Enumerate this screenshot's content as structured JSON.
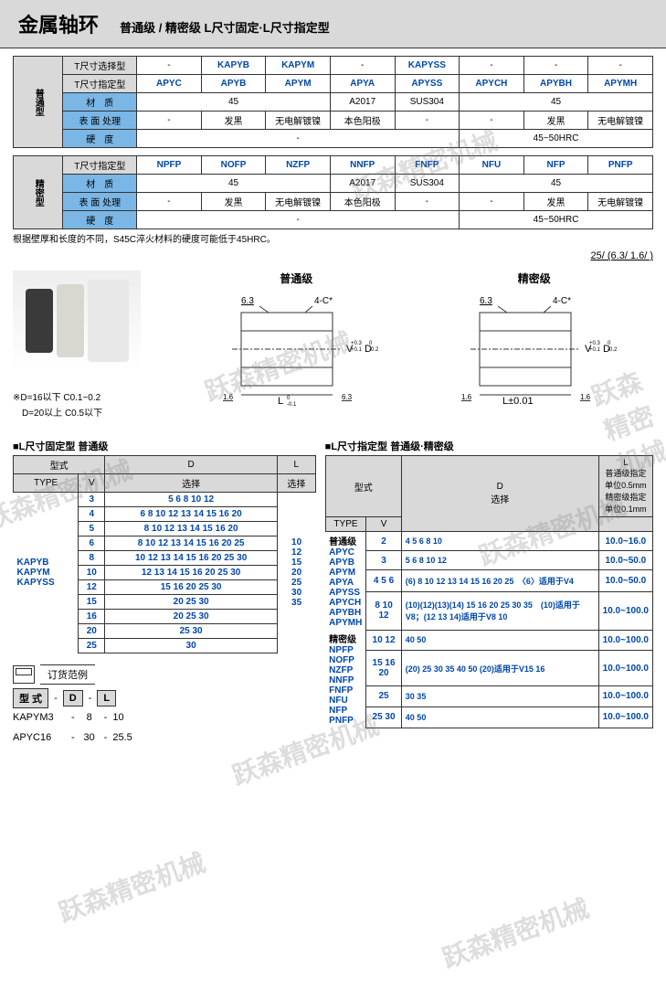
{
  "header": {
    "title": "金属轴环",
    "subtitle": "普通级 / 精密级 L尺寸固定·L尺寸指定型"
  },
  "watermark_text": "跃森精密机械",
  "table1": {
    "side_label": "普通型",
    "rows": [
      {
        "label": "T尺寸选择型",
        "cells": [
          "-",
          "KAPYB",
          "KAPYM",
          "-",
          "KAPYSS",
          "-",
          "-",
          "-"
        ],
        "hdr": true,
        "blue": [
          false,
          true,
          true,
          false,
          true,
          false,
          false,
          false
        ]
      },
      {
        "label": "T尺寸指定型",
        "cells": [
          "APYC",
          "APYB",
          "APYM",
          "APYA",
          "APYSS",
          "APYCH",
          "APYBH",
          "APYMH"
        ],
        "hdr": true,
        "blue": [
          true,
          true,
          true,
          true,
          true,
          true,
          true,
          true
        ]
      },
      {
        "label": "材　质",
        "cells": [
          "45",
          "A2017",
          "SUS304",
          "45"
        ],
        "spans": [
          3,
          1,
          1,
          3
        ],
        "hdr_label": true
      },
      {
        "label": "表 面 处理",
        "cells": [
          "-",
          "发黑",
          "无电解镀镍",
          "本色阳极",
          "-",
          "-",
          "发黑",
          "无电解镀镍"
        ],
        "hdr_label": true
      },
      {
        "label": "硬　度",
        "cells": [
          "-",
          "45~50HRC"
        ],
        "spans": [
          5,
          3
        ],
        "hdr_label": true
      }
    ]
  },
  "table2": {
    "side_label": "精密型",
    "rows": [
      {
        "label": "T尺寸指定型",
        "cells": [
          "NPFP",
          "NOFP",
          "NZFP",
          "NNFP",
          "FNFP",
          "NFU",
          "NFP",
          "PNFP"
        ],
        "hdr": true,
        "blue": [
          true,
          true,
          true,
          true,
          true,
          true,
          true,
          true
        ]
      },
      {
        "label": "材　质",
        "cells": [
          "45",
          "A2017",
          "SUS304",
          "45"
        ],
        "spans": [
          3,
          1,
          1,
          3
        ],
        "hdr_label": true
      },
      {
        "label": "表 面 处理",
        "cells": [
          "-",
          "发黑",
          "无电解镀镍",
          "本色阳极",
          "-",
          "-",
          "发黑",
          "无电解镀镍"
        ],
        "hdr_label": true
      },
      {
        "label": "硬　度",
        "cells": [
          "-",
          "45~50HRC"
        ],
        "spans": [
          5,
          3
        ],
        "hdr_label": true
      }
    ]
  },
  "note1": "根据壁厚和长度的不同，S45C淬火材料的硬度可能低于45HRC。",
  "surf_symbol": "25/  (6.3/  1.6/ )",
  "photo_note1": "※D=16以下 C0.1~0.2",
  "photo_note2": "　D=20以上 C0.5以下",
  "diagrams": {
    "left_title": "普通级",
    "right_title": "精密级",
    "mark63": "6.3",
    "mark4c": "4-C*",
    "markV": "V",
    "markD": "D",
    "tol_v": "+0.3\n+0.1",
    "tol_d": "0\n-0.2",
    "left_L": "L",
    "left_L_tol": "0\n-0.1",
    "right_L": "L±0.01",
    "mark16": "1.6"
  },
  "left_table": {
    "title": "■L尺寸固定型 普通级",
    "headers": {
      "type_col": "型式",
      "type_sub": "TYPE",
      "v": "V",
      "d": "D",
      "d_sub": "选择",
      "l": "L",
      "l_sub": "选择"
    },
    "type_values": [
      "KAPYB",
      "KAPYM",
      "KAPYSS"
    ],
    "rows": [
      {
        "v": "3",
        "d": "5 6 8 10 12"
      },
      {
        "v": "4",
        "d": "6 8 10 12 13 14 15 16 20"
      },
      {
        "v": "5",
        "d": "8 10 12 13 14 15 16 20"
      },
      {
        "v": "6",
        "d": "8 10 12 13 14 15 16 20 25"
      },
      {
        "v": "8",
        "d": "10 12 13 14 15 16 20 25 30"
      },
      {
        "v": "10",
        "d": "12 13 14 15 16 20 25 30"
      },
      {
        "v": "12",
        "d": "15 16 20 25 30"
      },
      {
        "v": "15",
        "d": "20 25 30"
      },
      {
        "v": "16",
        "d": "20 25 30"
      },
      {
        "v": "20",
        "d": "25 30"
      },
      {
        "v": "25",
        "d": "30"
      }
    ],
    "l_values": "10\n12\n15\n20\n25\n30\n35"
  },
  "right_table": {
    "title": "■L尺寸指定型 普通级·精密级",
    "headers": {
      "type_col": "型式",
      "type_sub": "TYPE",
      "v": "V",
      "d": "D",
      "d_sub": "选择",
      "l": "L",
      "l_sub1": "普通级指定",
      "l_sub2": "单位0.5mm",
      "l_sub3": "精密级指定",
      "l_sub4": "单位0.1mm"
    },
    "group1_label": "普通级",
    "group1_types": [
      "APYC",
      "APYB",
      "APYM",
      "APYA",
      "APYSS",
      "APYCH",
      "APYBH",
      "APYMH"
    ],
    "group2_label": "精密级",
    "group2_types": [
      "NPFP",
      "NOFP",
      "NZFP",
      "NNFP",
      "FNFP",
      "NFU",
      "NFP",
      "PNFP"
    ],
    "rows": [
      {
        "v": "2",
        "d": "4 5 6 8 10",
        "l": "10.0~16.0"
      },
      {
        "v": "3",
        "d": "5 6 8 10 12",
        "l": "10.0~50.0"
      },
      {
        "v": "4 5 6",
        "d": "(6) 8 10 12 13 14 15 16 20 25　〈6〉适用于V4",
        "l": "10.0~50.0"
      },
      {
        "v": "8 10 12",
        "d": "(10)(12)(13)(14) 15 16 20 25 30 35　(10)适用于V8；(12 13 14)适用于V8 10",
        "l": "10.0~100.0"
      },
      {
        "v": "10 12",
        "d": "40 50",
        "l": "10.0~100.0"
      },
      {
        "v": "15 16 20",
        "d": "(20) 25 30 35 40 50 (20)适用于V15 16",
        "l": "10.0~100.0"
      },
      {
        "v": "25",
        "d": "30 35",
        "l": "10.0~100.0"
      },
      {
        "v": "25 30",
        "d": "40 50",
        "l": "10.0~100.0"
      }
    ]
  },
  "order": {
    "title": "订货范例",
    "labels": {
      "type": "型 式",
      "d": "D",
      "l": "L"
    },
    "ex1": {
      "type": "KAPYM3",
      "d": "8",
      "l": "10"
    },
    "ex2": {
      "type": "APYC16",
      "d": "30",
      "l": "25.5"
    }
  },
  "colors": {
    "header_bg": "#d9d9d9",
    "blue_bg": "#7ab7e6",
    "blue_text": "#0047ab",
    "cyl1": "#3a3a3a",
    "cyl2": "#d8d8d0",
    "cyl3": "#e8e8e8"
  }
}
